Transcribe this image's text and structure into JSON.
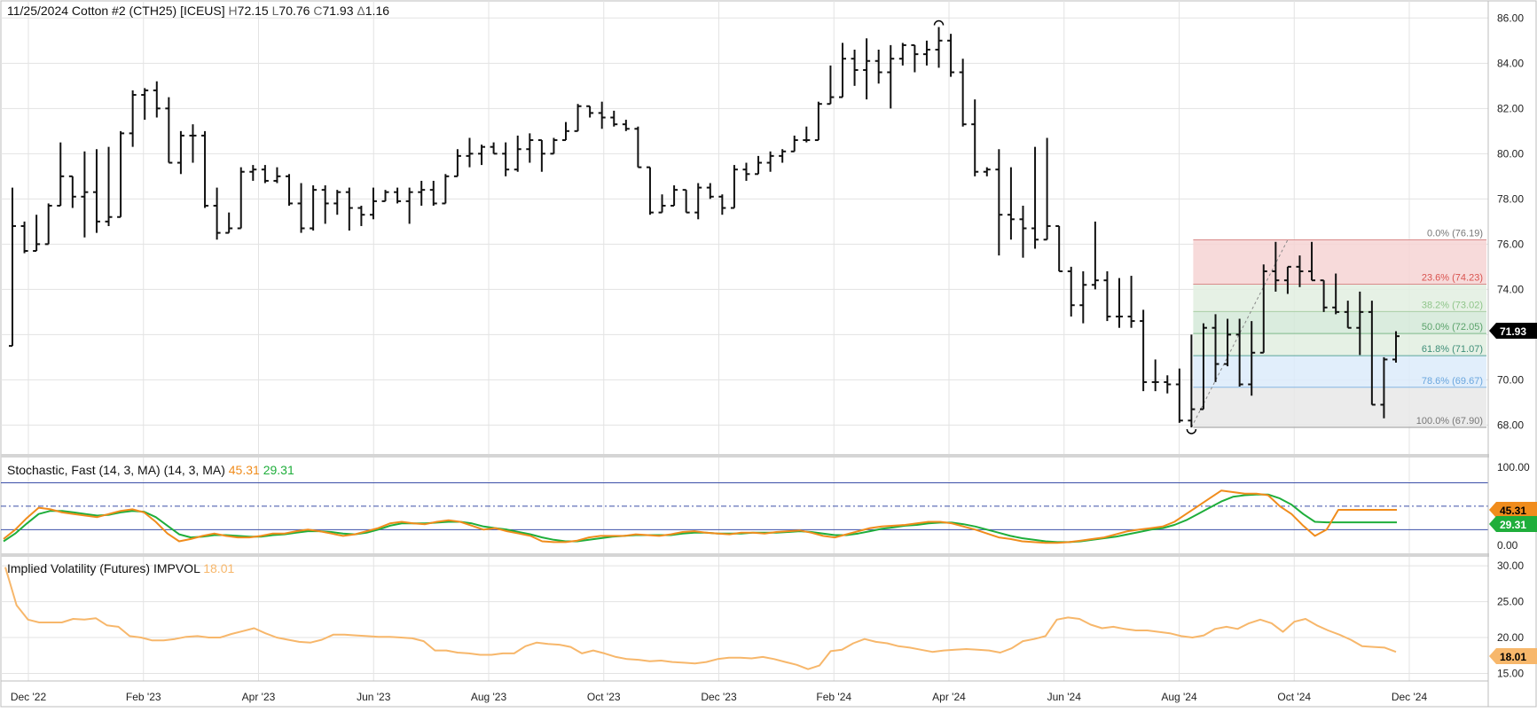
{
  "header": {
    "date": "11/25/2024",
    "instrument": "Cotton #2 (CTH25) [ICEUS]",
    "high_label": "H",
    "high": "72.15",
    "low_label": "L",
    "low": "70.76",
    "close_label": "C",
    "close": "71.93",
    "change_label": "Δ",
    "change": "1.16"
  },
  "colors": {
    "price_bar": "#111111",
    "stoch_k": "#f08c1c",
    "stoch_d": "#1fae3b",
    "stoch_lines": "#3b4fa8",
    "ivol": "#f7b76b",
    "grid": "#e3e3e3",
    "fib_red": "#f6d3d3",
    "fib_green": "#e2efe0",
    "fib_green2": "#d3e9d8",
    "fib_blue": "#dcebfa",
    "fib_gray": "#e7e7e7"
  },
  "chart_data": [
    {
      "type": "ohlc",
      "title": "11/25/2024 Cotton #2 (CTH25) [ICEUS]",
      "x_ticks": [
        "Dec '22",
        "Feb '23",
        "Apr '23",
        "Jun '23",
        "Aug '23",
        "Oct '23",
        "Dec '23",
        "Feb '24",
        "Apr '24",
        "Jun '24",
        "Aug '24",
        "Oct '24",
        "Dec '24"
      ],
      "ylim": [
        66.8,
        86.6
      ],
      "y_ticks": [
        "68.00",
        "70.00",
        "72.00",
        "74.00",
        "76.00",
        "78.00",
        "80.00",
        "82.00",
        "84.00",
        "86.00"
      ],
      "last_price_label": "71.93",
      "bars": [
        [
          71.5,
          78.5,
          73.2,
          76.8
        ],
        [
          76.8,
          77.0,
          75.6,
          75.7
        ],
        [
          75.7,
          77.3,
          75.7,
          76.0
        ],
        [
          76.0,
          77.8,
          76.0,
          77.7
        ],
        [
          77.7,
          80.5,
          77.7,
          79.0
        ],
        [
          79.0,
          78.5,
          77.6,
          78.1
        ],
        [
          78.1,
          80.1,
          76.3,
          78.3
        ],
        [
          78.3,
          80.2,
          76.5,
          77.0
        ],
        [
          77.0,
          80.3,
          76.8,
          77.2
        ],
        [
          77.2,
          81.0,
          77.7,
          80.9
        ],
        [
          80.9,
          82.8,
          80.3,
          82.6
        ],
        [
          82.6,
          82.9,
          81.5,
          82.8
        ],
        [
          82.8,
          83.2,
          81.6,
          82.0
        ],
        [
          82.0,
          82.5,
          79.6,
          79.6
        ],
        [
          79.6,
          81.0,
          79.1,
          80.8
        ],
        [
          80.8,
          81.3,
          79.6,
          80.8
        ],
        [
          80.8,
          81.0,
          77.6,
          77.7
        ],
        [
          77.7,
          78.5,
          76.2,
          76.5
        ],
        [
          76.5,
          77.4,
          76.5,
          76.7
        ],
        [
          76.7,
          79.4,
          77.7,
          79.2
        ],
        [
          79.2,
          79.5,
          78.8,
          79.3
        ],
        [
          79.3,
          79.5,
          78.7,
          78.8
        ],
        [
          78.8,
          79.4,
          78.7,
          79.0
        ],
        [
          79.0,
          79.1,
          77.7,
          77.8
        ],
        [
          77.8,
          78.7,
          76.5,
          76.7
        ],
        [
          76.7,
          78.6,
          76.6,
          78.4
        ],
        [
          78.4,
          78.6,
          76.9,
          77.8
        ],
        [
          77.8,
          78.4,
          77.3,
          78.3
        ],
        [
          78.3,
          78.5,
          76.6,
          77.6
        ],
        [
          77.6,
          77.7,
          76.8,
          77.3
        ],
        [
          77.3,
          78.5,
          77.1,
          77.9
        ],
        [
          77.9,
          78.4,
          78.0,
          78.3
        ],
        [
          78.3,
          78.5,
          77.8,
          77.9
        ],
        [
          77.9,
          78.5,
          76.9,
          78.3
        ],
        [
          78.3,
          78.8,
          77.7,
          78.4
        ],
        [
          78.4,
          78.8,
          77.7,
          77.8
        ],
        [
          77.8,
          79.1,
          78.4,
          79.0
        ],
        [
          79.0,
          80.2,
          79.0,
          79.9
        ],
        [
          79.9,
          80.7,
          79.4,
          80.0
        ],
        [
          80.0,
          80.4,
          79.5,
          80.3
        ],
        [
          80.3,
          80.5,
          80.0,
          80.0
        ],
        [
          80.0,
          80.5,
          79.0,
          79.3
        ],
        [
          79.3,
          80.8,
          79.2,
          80.2
        ],
        [
          80.2,
          80.9,
          79.6,
          80.6
        ],
        [
          80.6,
          80.5,
          79.2,
          80.0
        ],
        [
          80.0,
          80.7,
          80.5,
          80.6
        ],
        [
          80.6,
          81.4,
          80.9,
          81.0
        ],
        [
          81.0,
          82.2,
          81.8,
          82.1
        ],
        [
          82.1,
          82.1,
          81.6,
          81.8
        ],
        [
          81.8,
          82.3,
          81.1,
          81.6
        ],
        [
          81.6,
          81.9,
          81.2,
          81.3
        ],
        [
          81.3,
          81.5,
          81.0,
          81.1
        ],
        [
          81.1,
          81.2,
          79.4,
          79.4
        ],
        [
          79.4,
          78.5,
          77.3,
          77.4
        ],
        [
          77.4,
          78.2,
          77.6,
          77.7
        ],
        [
          77.7,
          78.6,
          77.9,
          78.4
        ],
        [
          78.4,
          78.1,
          77.4,
          77.4
        ],
        [
          77.4,
          78.7,
          77.1,
          78.5
        ],
        [
          78.5,
          78.7,
          78.0,
          78.1
        ],
        [
          78.1,
          78.2,
          77.3,
          77.6
        ],
        [
          77.6,
          79.5,
          78.0,
          79.3
        ],
        [
          79.3,
          79.6,
          78.8,
          79.1
        ],
        [
          79.1,
          79.9,
          79.2,
          79.6
        ],
        [
          79.6,
          80.1,
          79.2,
          79.9
        ],
        [
          79.9,
          80.2,
          79.6,
          80.1
        ],
        [
          80.1,
          80.8,
          80.3,
          80.6
        ],
        [
          80.6,
          81.2,
          80.5,
          80.6
        ],
        [
          80.6,
          82.3,
          80.8,
          82.2
        ],
        [
          82.2,
          83.9,
          82.4,
          82.5
        ],
        [
          82.5,
          84.9,
          83.8,
          84.2
        ],
        [
          84.2,
          84.6,
          83.0,
          83.7
        ],
        [
          83.7,
          85.1,
          82.4,
          84.1
        ],
        [
          84.1,
          84.6,
          83.1,
          83.6
        ],
        [
          83.6,
          84.8,
          82.0,
          84.2
        ],
        [
          84.2,
          84.9,
          83.9,
          84.8
        ],
        [
          84.8,
          84.7,
          83.6,
          84.4
        ],
        [
          84.4,
          85.0,
          83.9,
          84.6
        ],
        [
          84.6,
          85.6,
          83.8,
          85.0
        ],
        [
          85.0,
          85.3,
          83.4,
          83.6
        ],
        [
          83.6,
          84.2,
          81.2,
          81.3
        ],
        [
          81.3,
          82.4,
          79.0,
          79.2
        ],
        [
          79.2,
          79.4,
          79.0,
          79.3
        ],
        [
          79.3,
          80.2,
          75.5,
          77.3
        ],
        [
          77.3,
          79.4,
          76.2,
          77.1
        ],
        [
          77.1,
          77.7,
          75.4,
          76.7
        ],
        [
          76.7,
          80.3,
          75.8,
          76.2
        ],
        [
          76.2,
          80.7,
          77.0,
          76.8
        ],
        [
          76.8,
          76.6,
          74.8,
          74.8
        ],
        [
          74.8,
          75.0,
          72.8,
          73.3
        ],
        [
          73.3,
          74.8,
          72.5,
          74.2
        ],
        [
          74.2,
          77.0,
          74.0,
          74.4
        ],
        [
          74.4,
          74.8,
          72.6,
          72.8
        ],
        [
          72.8,
          74.5,
          72.3,
          72.8
        ],
        [
          72.8,
          74.6,
          72.3,
          72.6
        ],
        [
          72.6,
          73.1,
          69.5,
          69.9
        ],
        [
          69.9,
          70.9,
          69.5,
          69.9
        ],
        [
          69.9,
          70.2,
          69.4,
          69.8
        ],
        [
          69.8,
          70.5,
          68.1,
          68.2
        ],
        [
          68.2,
          72.0,
          67.9,
          68.7
        ],
        [
          68.7,
          72.5,
          68.8,
          72.3
        ],
        [
          72.3,
          72.9,
          69.9,
          70.7
        ],
        [
          70.7,
          72.7,
          70.6,
          72.0
        ],
        [
          72.0,
          72.7,
          69.7,
          69.8
        ],
        [
          69.8,
          72.6,
          69.3,
          71.2
        ],
        [
          71.2,
          75.1,
          71.2,
          74.8
        ],
        [
          74.8,
          76.1,
          73.9,
          74.4
        ],
        [
          74.4,
          74.9,
          73.8,
          75.0
        ],
        [
          75.0,
          75.5,
          74.1,
          74.8
        ],
        [
          74.8,
          76.1,
          74.4,
          74.4
        ],
        [
          74.4,
          74.3,
          73.0,
          73.2
        ],
        [
          73.2,
          74.7,
          72.9,
          73.0
        ],
        [
          73.0,
          73.5,
          72.6,
          72.3
        ],
        [
          72.3,
          73.9,
          71.1,
          73.0
        ],
        [
          73.0,
          73.5,
          68.9,
          68.9
        ],
        [
          68.9,
          71.0,
          68.3,
          70.9
        ],
        [
          70.9,
          72.15,
          70.76,
          71.93
        ]
      ],
      "fibonacci": [
        {
          "label": "0.0% (76.19)",
          "value": 76.19
        },
        {
          "label": "23.6% (74.23)",
          "value": 74.23
        },
        {
          "label": "38.2% (73.02)",
          "value": 73.02
        },
        {
          "label": "50.0% (72.05)",
          "value": 72.05
        },
        {
          "label": "61.8% (71.07)",
          "value": 71.07
        },
        {
          "label": "78.6% (69.67)",
          "value": 69.67
        },
        {
          "label": "100.0% (67.90)",
          "value": 67.9
        }
      ],
      "fib_anchor_bars": [
        98,
        106
      ]
    },
    {
      "type": "line",
      "title": "Stochastic, Fast (14, 3, MA)",
      "params": "(14, 3, MA)",
      "ylim": [
        -8,
        110
      ],
      "y_ticks": [
        "100.00",
        "0.00"
      ],
      "levels": [
        80,
        50,
        20
      ],
      "k_label": "45.31",
      "d_label": "29.31",
      "series": [
        {
          "name": "%K",
          "values": [
            8,
            20,
            35,
            48,
            46,
            42,
            40,
            38,
            36,
            40,
            44,
            46,
            42,
            30,
            15,
            5,
            8,
            12,
            15,
            12,
            10,
            10,
            12,
            15,
            15,
            18,
            20,
            18,
            15,
            12,
            14,
            18,
            22,
            28,
            30,
            28,
            27,
            30,
            32,
            30,
            25,
            20,
            22,
            18,
            15,
            12,
            5,
            4,
            4,
            6,
            10,
            12,
            12,
            12,
            14,
            13,
            12,
            14,
            17,
            18,
            16,
            15,
            14,
            16,
            16,
            15,
            17,
            18,
            19,
            16,
            12,
            10,
            14,
            18,
            22,
            24,
            25,
            26,
            28,
            30,
            30,
            28,
            24,
            20,
            15,
            10,
            8,
            5,
            4,
            3,
            3,
            4,
            6,
            8,
            10,
            14,
            18,
            20,
            22,
            24,
            30,
            40,
            50,
            60,
            70,
            68,
            66,
            66,
            64,
            50,
            40,
            25,
            12,
            20,
            45.31,
            45.31,
            45.31,
            45.31,
            45.31,
            45.31
          ]
        },
        {
          "name": "%D",
          "values": [
            5,
            15,
            28,
            40,
            44,
            44,
            42,
            40,
            38,
            39,
            42,
            44,
            43,
            36,
            25,
            14,
            10,
            11,
            13,
            13,
            12,
            11,
            11,
            13,
            14,
            16,
            18,
            18,
            17,
            15,
            14,
            16,
            20,
            25,
            28,
            28,
            28,
            29,
            30,
            30,
            28,
            24,
            22,
            20,
            17,
            14,
            10,
            7,
            5,
            5,
            7,
            9,
            11,
            12,
            13,
            13,
            13,
            13,
            15,
            16,
            16,
            15,
            15,
            15,
            16,
            16,
            16,
            17,
            18,
            17,
            15,
            13,
            13,
            15,
            18,
            21,
            23,
            25,
            26,
            28,
            29,
            29,
            27,
            24,
            20,
            16,
            12,
            9,
            7,
            5,
            4,
            4,
            5,
            7,
            9,
            11,
            14,
            17,
            20,
            22,
            26,
            32,
            40,
            48,
            56,
            62,
            64,
            65,
            65,
            60,
            52,
            40,
            30,
            29.31,
            29.31,
            29.31,
            29.31,
            29.31,
            29.31,
            29.31
          ]
        }
      ]
    },
    {
      "type": "line",
      "title": "Implied Volatility (Futures)",
      "series_label": "IMPVOL",
      "value_label": "18.01",
      "ylim": [
        14.2,
        31.0
      ],
      "y_ticks": [
        "30.00",
        "25.00",
        "20.00",
        "15.00"
      ],
      "series": [
        {
          "name": "IMPVOL",
          "values": [
            29.8,
            24.5,
            22.5,
            22.1,
            22.1,
            22.1,
            22.6,
            22.5,
            22.7,
            21.7,
            21.5,
            20.2,
            20.0,
            19.6,
            19.6,
            19.8,
            20.1,
            20.2,
            20.0,
            20.0,
            20.5,
            20.9,
            21.3,
            20.6,
            20.0,
            19.7,
            19.4,
            19.3,
            19.7,
            20.4,
            20.4,
            20.3,
            20.2,
            20.1,
            20.1,
            20.0,
            19.9,
            19.5,
            18.2,
            18.2,
            17.9,
            17.8,
            17.6,
            17.6,
            17.8,
            17.8,
            18.8,
            19.3,
            19.1,
            19.0,
            18.7,
            17.8,
            18.2,
            17.8,
            17.3,
            17.0,
            16.9,
            16.7,
            16.8,
            16.6,
            16.5,
            16.4,
            16.6,
            17.0,
            17.2,
            17.2,
            17.1,
            17.3,
            17.0,
            16.6,
            16.2,
            15.6,
            16.1,
            18.1,
            18.3,
            19.2,
            19.8,
            19.4,
            19.2,
            18.8,
            18.6,
            18.3,
            18.0,
            18.2,
            18.3,
            18.4,
            18.3,
            18.2,
            17.9,
            18.5,
            19.5,
            19.8,
            20.2,
            22.5,
            22.8,
            22.6,
            21.8,
            21.3,
            21.5,
            21.2,
            21.0,
            21.0,
            20.8,
            20.6,
            20.2,
            20.0,
            20.3,
            21.2,
            21.5,
            21.2,
            22.0,
            22.5,
            22.0,
            20.8,
            22.2,
            22.6,
            21.7,
            21.0,
            20.4,
            19.7,
            18.8,
            18.7,
            18.6,
            18.01
          ]
        }
      ]
    }
  ]
}
